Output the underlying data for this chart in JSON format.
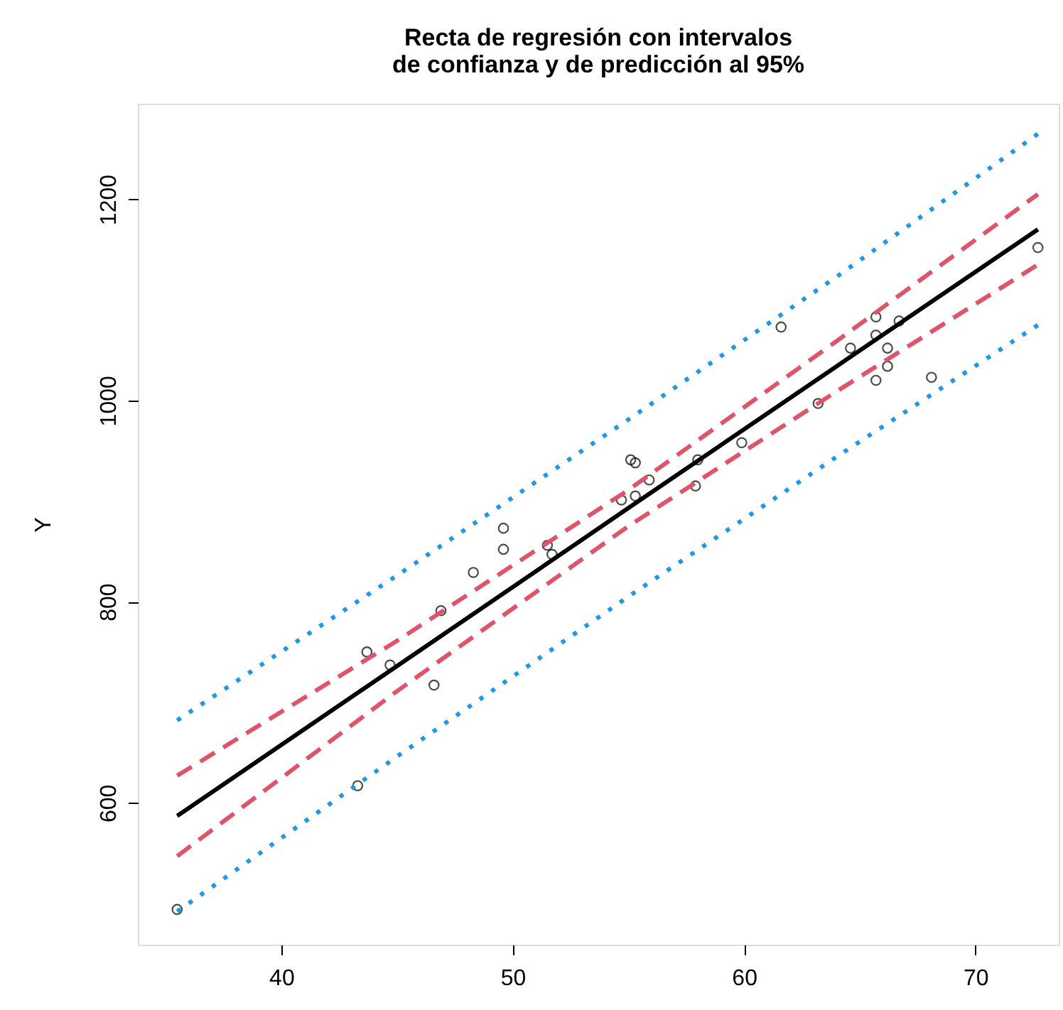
{
  "chart_data": {
    "type": "scatter",
    "title": [
      "Recta de regresión con intervalos",
      "de confianza y de predicción al 95%"
    ],
    "ylabel": "Y",
    "xlim": [
      33.8,
      73.6
    ],
    "ylim": [
      459,
      1295
    ],
    "xticks": [
      40,
      50,
      60,
      70
    ],
    "yticks": [
      600,
      800,
      1000,
      1200
    ],
    "grid": false,
    "series": [
      {
        "marker": "circle",
        "color": "#000000",
        "x": [
          35.5,
          43.3,
          43.7,
          44.7,
          46.6,
          46.9,
          48.3,
          49.6,
          49.6,
          51.5,
          51.7,
          54.7,
          55.3,
          55.1,
          55.3,
          55.9,
          58.0,
          57.9,
          59.9,
          63.2,
          61.6,
          64.6,
          65.7,
          65.7,
          66.7,
          66.2,
          66.2,
          65.7,
          68.1,
          72.7
        ],
        "values": [
          494,
          617,
          750,
          737,
          717,
          791,
          829,
          852,
          873,
          856,
          847,
          901,
          905,
          941,
          938,
          921,
          941,
          915,
          958,
          997,
          1073,
          1052,
          1083,
          1065,
          1079,
          1052,
          1034,
          1020,
          1023,
          1152
        ]
      },
      {
        "type": "line",
        "line_style": "solid",
        "color": "#000000",
        "x": [
          35.5,
          45,
          55,
          64,
          72.7
        ],
        "values": [
          587,
          736,
          893,
          1034,
          1170
        ]
      },
      {
        "type": "line",
        "line_style": "dashed",
        "color": "#df536b",
        "x": [
          35.5,
          45,
          55,
          64,
          72.7
        ],
        "values": [
          627,
          761,
          911,
          1059,
          1205
        ]
      },
      {
        "type": "line",
        "line_style": "dashed",
        "color": "#df536b",
        "x": [
          35.5,
          45,
          55,
          64,
          72.7
        ],
        "values": [
          547,
          711,
          875,
          1009,
          1135
        ]
      },
      {
        "type": "line",
        "line_style": "dotted",
        "color": "#2297e6",
        "x": [
          35.5,
          45,
          55,
          64,
          72.7
        ],
        "values": [
          682,
          826,
          981,
          1123,
          1265
        ]
      },
      {
        "type": "line",
        "line_style": "dotted",
        "color": "#2297e6",
        "x": [
          35.5,
          45,
          55,
          64,
          72.7
        ],
        "values": [
          492,
          646,
          805,
          944,
          1075
        ]
      }
    ]
  }
}
